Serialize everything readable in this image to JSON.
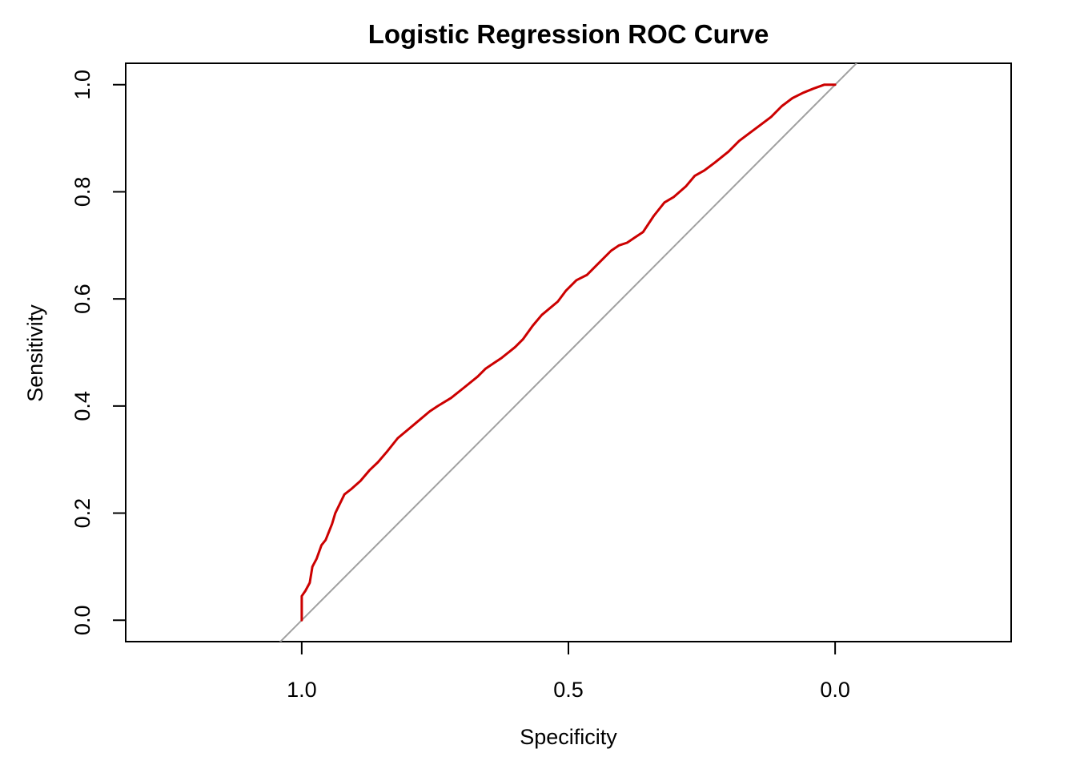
{
  "chart_data": {
    "type": "line",
    "title": "Logistic Regression ROC Curve",
    "xlabel": "Specificity",
    "ylabel": "Sensitivity",
    "x_reversed": true,
    "xlim": [
      1.33,
      -0.33
    ],
    "ylim": [
      -0.04,
      1.04
    ],
    "x_ticks": [
      "1.0",
      "0.5",
      "0.0"
    ],
    "x_tick_values": [
      1.0,
      0.5,
      0.0
    ],
    "y_ticks": [
      "0.0",
      "0.2",
      "0.4",
      "0.6",
      "0.8",
      "1.0"
    ],
    "y_tick_values": [
      0.0,
      0.2,
      0.4,
      0.6,
      0.8,
      1.0
    ],
    "grid": false,
    "legend": "none",
    "reference_line": {
      "from": [
        1.0,
        0.0
      ],
      "to": [
        0.0,
        1.0
      ],
      "color": "#a0a0a0"
    },
    "series": [
      {
        "color": "#cc0000",
        "x": [
          1.0,
          1.0,
          0.993,
          0.985,
          0.98,
          0.972,
          0.963,
          0.955,
          0.943,
          0.937,
          0.92,
          0.907,
          0.89,
          0.873,
          0.857,
          0.84,
          0.82,
          0.79,
          0.76,
          0.745,
          0.72,
          0.695,
          0.67,
          0.655,
          0.64,
          0.625,
          0.6,
          0.585,
          0.567,
          0.55,
          0.52,
          0.505,
          0.485,
          0.465,
          0.445,
          0.42,
          0.405,
          0.39,
          0.375,
          0.36,
          0.34,
          0.32,
          0.303,
          0.28,
          0.263,
          0.245,
          0.225,
          0.2,
          0.18,
          0.16,
          0.14,
          0.12,
          0.1,
          0.08,
          0.06,
          0.04,
          0.02,
          0.0
        ],
        "y": [
          0.0,
          0.045,
          0.055,
          0.07,
          0.1,
          0.115,
          0.14,
          0.15,
          0.18,
          0.2,
          0.235,
          0.245,
          0.26,
          0.28,
          0.295,
          0.315,
          0.34,
          0.365,
          0.39,
          0.4,
          0.415,
          0.435,
          0.455,
          0.47,
          0.48,
          0.49,
          0.51,
          0.525,
          0.55,
          0.57,
          0.595,
          0.615,
          0.635,
          0.645,
          0.665,
          0.69,
          0.7,
          0.705,
          0.715,
          0.725,
          0.755,
          0.78,
          0.79,
          0.81,
          0.83,
          0.84,
          0.855,
          0.875,
          0.895,
          0.91,
          0.925,
          0.94,
          0.96,
          0.975,
          0.985,
          0.993,
          1.0,
          1.0
        ]
      }
    ]
  }
}
